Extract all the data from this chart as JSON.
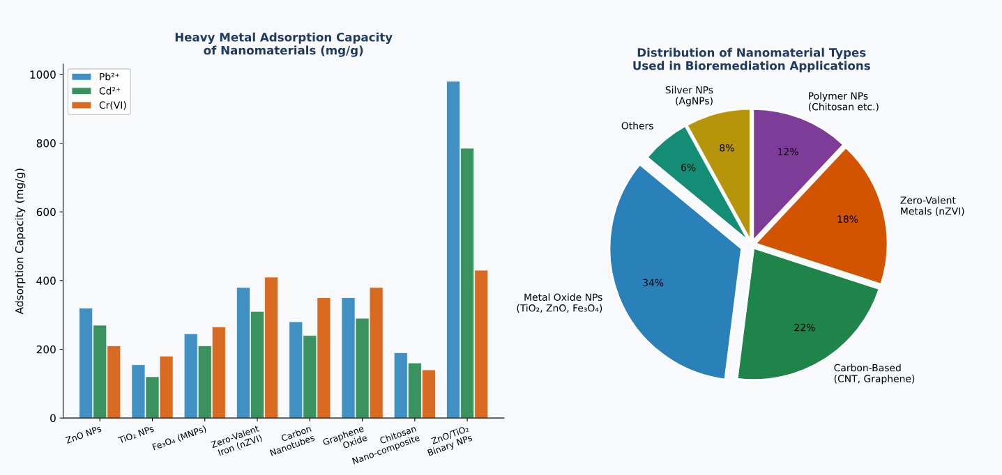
{
  "chart_data": [
    {
      "type": "bar",
      "title": "Heavy Metal Adsorption Capacity\nof Nanomaterials (mg/g)",
      "ylabel": "Adsorption Capacity (mg/g)",
      "categories": [
        "ZnO NPs",
        "TiO₂ NPs",
        "Fe₃O₄ (MNPs)",
        "Zero-Valent\nIron (nZVI)",
        "Carbon\nNanotubes",
        "Graphene\nOxide",
        "Chitosan\nNano-composite",
        "ZnO/TiO₂\nBinary NPs"
      ],
      "series": [
        {
          "name": "Pb²⁺",
          "color": "#4190c3",
          "values": [
            320,
            155,
            245,
            380,
            280,
            350,
            190,
            980
          ]
        },
        {
          "name": "Cd²⁺",
          "color": "#3a925e",
          "values": [
            270,
            120,
            210,
            310,
            240,
            290,
            160,
            785
          ]
        },
        {
          "name": "Cr(VI)",
          "color": "#d96a21",
          "values": [
            210,
            180,
            265,
            410,
            350,
            380,
            140,
            430
          ]
        }
      ],
      "ylim": [
        0,
        1030
      ],
      "yticks": [
        0,
        200,
        400,
        600,
        800,
        1000
      ],
      "grid": false,
      "legend": "top left"
    },
    {
      "type": "pie",
      "title": "Distribution of Nanomaterial Types\nUsed in Bioremediation Applications",
      "categories": [
        "Polymer NPs\n(Chitosan etc.)",
        "Zero-Valent\nMetals (nZVI)",
        "Carbon-Based\n(CNT, Graphene)",
        "Metal Oxide NPs\n(TiO₂, ZnO, Fe₃O₄)",
        "Others",
        "Silver NPs\n(AgNPs)"
      ],
      "values": [
        12,
        18,
        22,
        34,
        6,
        8
      ],
      "value_labels": [
        "12%",
        "18%",
        "22%",
        "34%",
        "6%",
        "8%"
      ],
      "colors": [
        "#7d3c98",
        "#d35400",
        "#1e8449",
        "#2a80b9",
        "#138d75",
        "#b7950b"
      ]
    }
  ]
}
